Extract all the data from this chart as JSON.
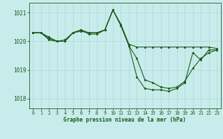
{
  "background_color": "#c8ecec",
  "grid_color": "#b8dada",
  "line_color": "#1a5c1a",
  "x_ticks": [
    0,
    1,
    2,
    3,
    4,
    5,
    6,
    7,
    8,
    9,
    10,
    11,
    12,
    13,
    14,
    15,
    16,
    17,
    18,
    19,
    20,
    21,
    22,
    23
  ],
  "y_ticks": [
    1018,
    1019,
    1020,
    1021
  ],
  "ylim": [
    1017.65,
    1021.35
  ],
  "xlim": [
    -0.5,
    23.5
  ],
  "xlabel": "Graphe pression niveau de la mer (hPa)",
  "series": [
    [
      1020.3,
      1020.3,
      1020.1,
      1020.0,
      1020.0,
      1020.3,
      1020.4,
      1020.3,
      1020.3,
      1020.4,
      1021.1,
      1020.6,
      1019.9,
      1019.8,
      1019.8,
      1019.8,
      1019.8,
      1019.8,
      1019.8,
      1019.8,
      1019.8,
      1019.8,
      1019.8,
      1019.75
    ],
    [
      1020.3,
      1020.3,
      1020.05,
      1020.0,
      1020.0,
      1020.3,
      1020.4,
      1020.25,
      1020.25,
      1020.4,
      1021.1,
      1020.55,
      1019.85,
      1019.4,
      1018.65,
      1018.55,
      1018.4,
      1018.35,
      1018.4,
      1018.6,
      1019.05,
      1019.4,
      1019.6,
      1019.7
    ],
    [
      1020.3,
      1020.3,
      1020.15,
      1020.0,
      1020.05,
      1020.3,
      1020.35,
      1020.3,
      1020.3,
      1020.4,
      1021.1,
      1020.55,
      1019.85,
      1018.75,
      1018.35,
      1018.3,
      1018.3,
      1018.25,
      1018.35,
      1018.55,
      1019.6,
      1019.35,
      1019.7,
      1019.7
    ]
  ]
}
